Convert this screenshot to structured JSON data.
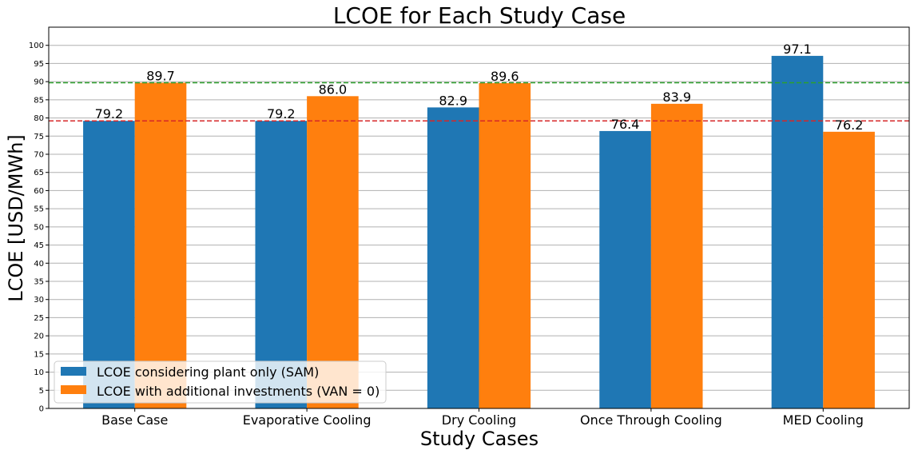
{
  "chart_data": {
    "type": "bar",
    "title": "LCOE for Each Study Case",
    "xlabel": "Study Cases",
    "ylabel": "LCOE [USD/MWh]",
    "categories": [
      "Base Case",
      "Evaporative Cooling",
      "Dry Cooling",
      "Once Through Cooling",
      "MED Cooling"
    ],
    "series": [
      {
        "name": "LCOE considering plant only (SAM)",
        "color": "#1f77b4",
        "values": [
          79.2,
          79.2,
          82.9,
          76.4,
          97.1
        ],
        "labels": [
          "79.2",
          "79.2",
          "82.9",
          "76.4",
          "97.1"
        ]
      },
      {
        "name": "LCOE with additional investments (VAN = 0)",
        "color": "#ff7f0e",
        "values": [
          89.7,
          86.0,
          89.6,
          83.9,
          76.2
        ],
        "labels": [
          "89.7",
          "86.0",
          "89.6",
          "83.9",
          "76.2"
        ]
      }
    ],
    "ylim": [
      0,
      105
    ],
    "yticks": [
      0,
      5,
      10,
      15,
      20,
      25,
      30,
      35,
      40,
      45,
      50,
      55,
      60,
      65,
      70,
      75,
      80,
      85,
      90,
      95,
      100
    ],
    "grid": "horizontal",
    "legend_position": "bottom-left",
    "reference_lines": [
      {
        "value": 79.2,
        "color": "#d62728",
        "style": "dashed"
      },
      {
        "value": 89.7,
        "color": "#2ca02c",
        "style": "dashed"
      }
    ]
  }
}
